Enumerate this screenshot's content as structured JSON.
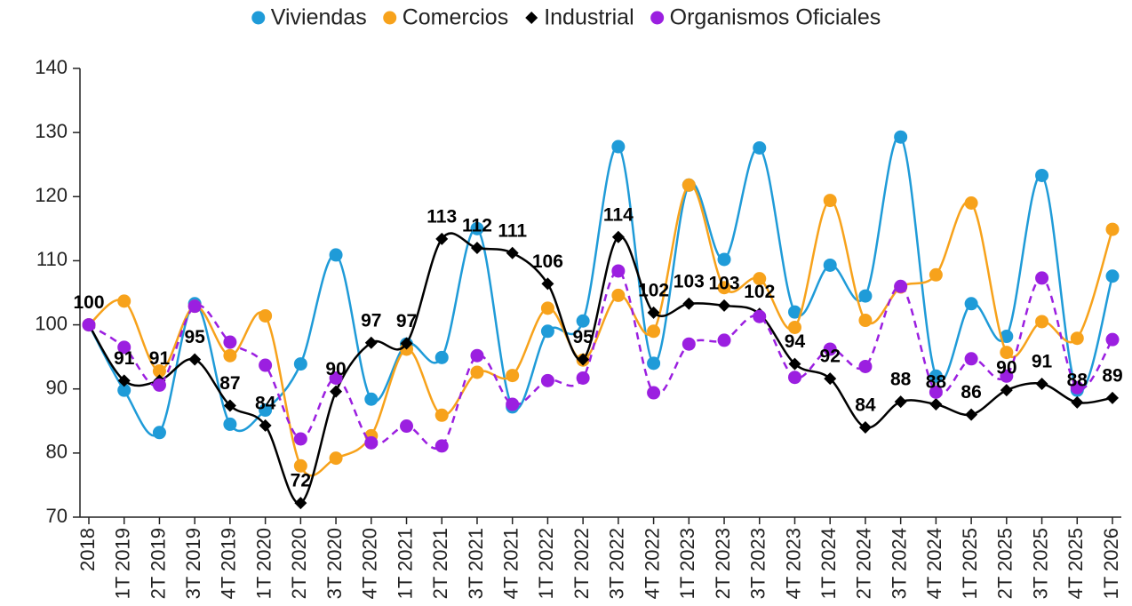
{
  "chart_data": {
    "type": "line",
    "categories": [
      "2018",
      "1T 2019",
      "2T 2019",
      "3T 2019",
      "4T 2019",
      "1T 2020",
      "2T 2020",
      "3T 2020",
      "4T 2020",
      "1T 2021",
      "2T 2021",
      "3T 2021",
      "4T 2021",
      "1T 2022",
      "2T 2022",
      "3T 2022",
      "4T 2022",
      "1T 2023",
      "2T 2023",
      "3T 2023",
      "4T 2023",
      "1T 2024",
      "2T 2024",
      "3T 2024",
      "4T 2024",
      "1T 2025",
      "2T 2025",
      "3T 2025",
      "4T 2025",
      "1T 2026"
    ],
    "series": [
      {
        "name": "Viviendas",
        "color": "#1f9bd8",
        "marker": "circle",
        "values": [
          100,
          89.8,
          83.2,
          103.3,
          84.5,
          86.7,
          93.9,
          110.9,
          88.4,
          97,
          94.9,
          115,
          87.2,
          99,
          100.6,
          127.8,
          94,
          121.8,
          110.2,
          127.6,
          102,
          109.3,
          104.5,
          129.3,
          92,
          103.3,
          98.2,
          123.3,
          89.8,
          107.6
        ]
      },
      {
        "name": "Comercios",
        "color": "#f7a21b",
        "marker": "circle",
        "values": [
          100,
          103.7,
          92.8,
          102.9,
          95.2,
          101.4,
          78,
          79.2,
          82.7,
          96.2,
          85.9,
          92.6,
          92.1,
          102.6,
          94.5,
          104.6,
          99,
          121.8,
          105.8,
          107.2,
          99.6,
          119.4,
          100.7,
          105.9,
          107.8,
          119,
          95.7,
          100.5,
          97.9,
          114.9
        ]
      },
      {
        "name": "Industrial",
        "color": "#000000",
        "marker": "diamond",
        "values": [
          100,
          91.3,
          91.3,
          94.6,
          87.4,
          84.3,
          72.2,
          89.6,
          97.2,
          97.1,
          113.4,
          112,
          111.2,
          106.4,
          94.6,
          113.7,
          101.9,
          103.3,
          103,
          101.7,
          93.9,
          91.6,
          84,
          88,
          87.6,
          86,
          89.8,
          90.8,
          87.9,
          88.6
        ],
        "value_labels": [
          "100",
          "91",
          "91",
          "95",
          "87",
          "84",
          "72",
          "90",
          "97",
          "97",
          "113",
          "112",
          "111",
          "106",
          "95",
          "114",
          "102",
          "103",
          "103",
          "102",
          "94",
          "92",
          "84",
          "88",
          "88",
          "86",
          "90",
          "91",
          "88",
          "89"
        ]
      },
      {
        "name": "Organismos Oficiales",
        "color": "#9b1fe0",
        "marker": "circle",
        "dashed": true,
        "values": [
          100,
          96.5,
          90.6,
          102.9,
          97.3,
          93.7,
          82.2,
          91.7,
          81.6,
          84.2,
          81.1,
          95.2,
          87.6,
          91.3,
          91.7,
          108.4,
          89.4,
          97,
          97.6,
          101.3,
          91.8,
          96.2,
          93.5,
          106,
          89.5,
          94.7,
          92,
          107.3,
          90.2,
          97.7
        ]
      }
    ],
    "ylim": [
      70,
      140
    ],
    "yticks": [
      70,
      80,
      90,
      100,
      110,
      120,
      130,
      140
    ],
    "legend": "top"
  }
}
